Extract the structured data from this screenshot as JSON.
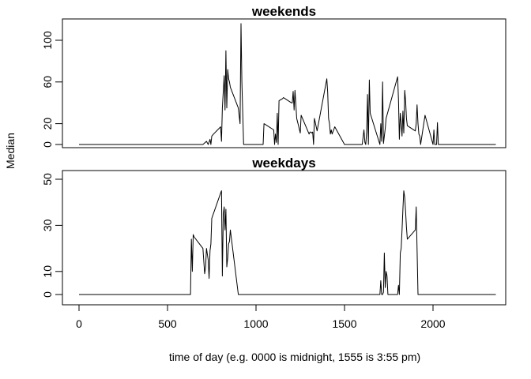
{
  "chart_data": {
    "type": "line",
    "xlabel": "time of day (e.g. 0000 is midnight, 1555 is 3:55 pm)",
    "ylabel": "Median",
    "x_ticks": [
      0,
      500,
      1000,
      1500,
      2000
    ],
    "xlim": [
      0,
      2355
    ],
    "panels": [
      {
        "title": "weekends",
        "ylim": [
          0,
          116
        ],
        "y_ticks": [
          0,
          20,
          60,
          100
        ],
        "series": [
          {
            "x": [
              0,
              700,
              720,
              730,
              740,
              745,
              750,
              760,
              800,
              805,
              810,
              820,
              825,
              830,
              835,
              840,
              845,
              850,
              855,
              900,
              910,
              915,
              920,
              930,
              1000,
              1040,
              1045,
              1100,
              1105,
              1110,
              1115,
              1120,
              1125,
              1130,
              1150,
              1155,
              1200,
              1205,
              1210,
              1215,
              1220,
              1230,
              1240,
              1250,
              1255,
              1300,
              1305,
              1310,
              1315,
              1320,
              1325,
              1330,
              1345,
              1400,
              1405,
              1410,
              1415,
              1420,
              1425,
              1430,
              1445,
              1500,
              1600,
              1610,
              1615,
              1620,
              1625,
              1630,
              1635,
              1640,
              1645,
              1700,
              1705,
              1710,
              1715,
              1720,
              1725,
              1730,
              1735,
              1800,
              1805,
              1810,
              1815,
              1820,
              1825,
              1830,
              1835,
              1840,
              1845,
              1850,
              1855,
              1900,
              1905,
              1910,
              1915,
              1920,
              1925,
              1930,
              1955,
              2000,
              2005,
              2010,
              2015,
              2020,
              2025,
              2030,
              2040,
              2045,
              2050,
              2055,
              2100,
              2355
            ],
            "y": [
              0,
              0,
              3,
              0,
              5,
              0,
              8,
              10,
              17,
              3,
              35,
              66,
              33,
              90,
              35,
              72,
              63,
              60,
              55,
              35,
              20,
              116,
              60,
              0,
              0,
              0,
              20,
              14,
              0,
              10,
              2,
              30,
              0,
              42,
              44,
              45,
              40,
              40,
              51,
              33,
              52,
              25,
              18,
              11,
              28,
              10,
              12,
              12,
              11,
              12,
              0,
              25,
              13,
              63,
              50,
              25,
              20,
              10,
              14,
              10,
              17,
              0,
              0,
              14,
              2,
              0,
              12,
              48,
              0,
              62,
              30,
              0,
              20,
              3,
              60,
              1,
              8,
              15,
              25,
              65,
              43,
              5,
              30,
              20,
              8,
              32,
              11,
              52,
              42,
              25,
              18,
              13,
              20,
              38,
              20,
              10,
              8,
              0,
              28,
              0,
              14,
              0,
              0,
              0,
              21,
              0,
              0,
              0,
              0,
              0,
              0,
              0
            ]
          }
        ]
      },
      {
        "title": "weekdays",
        "ylim": [
          0,
          52
        ],
        "y_ticks": [
          0,
          10,
          30,
          50
        ],
        "series": [
          {
            "x": [
              0,
              620,
              630,
              635,
              640,
              645,
              650,
              700,
              710,
              715,
              720,
              730,
              735,
              740,
              745,
              750,
              800,
              805,
              810,
              815,
              820,
              825,
              830,
              835,
              840,
              845,
              850,
              855,
              900,
              910,
              915,
              920,
              925,
              930,
              1700,
              1705,
              1710,
              1715,
              1720,
              1725,
              1730,
              1735,
              1740,
              1745,
              1800,
              1805,
              1810,
              1815,
              1820,
              1825,
              1830,
              1835,
              1840,
              1845,
              1850,
              1855,
              1900,
              1905,
              1910,
              1915,
              1920,
              1925,
              1930,
              2355
            ],
            "y": [
              0,
              0,
              0,
              24,
              10,
              26,
              25,
              20,
              9,
              12,
              20,
              15,
              7,
              19,
              22,
              33,
              44,
              45,
              8,
              35,
              38,
              28,
              37,
              12,
              16,
              22,
              23,
              28,
              0,
              0,
              0,
              0,
              0,
              0,
              0,
              6,
              0,
              0,
              1,
              18,
              3,
              10,
              8,
              0,
              0,
              4,
              0,
              18,
              20,
              28,
              37,
              45,
              42,
              36,
              29,
              24,
              28,
              38,
              20,
              0,
              0,
              0,
              0,
              0
            ]
          }
        ]
      }
    ]
  }
}
